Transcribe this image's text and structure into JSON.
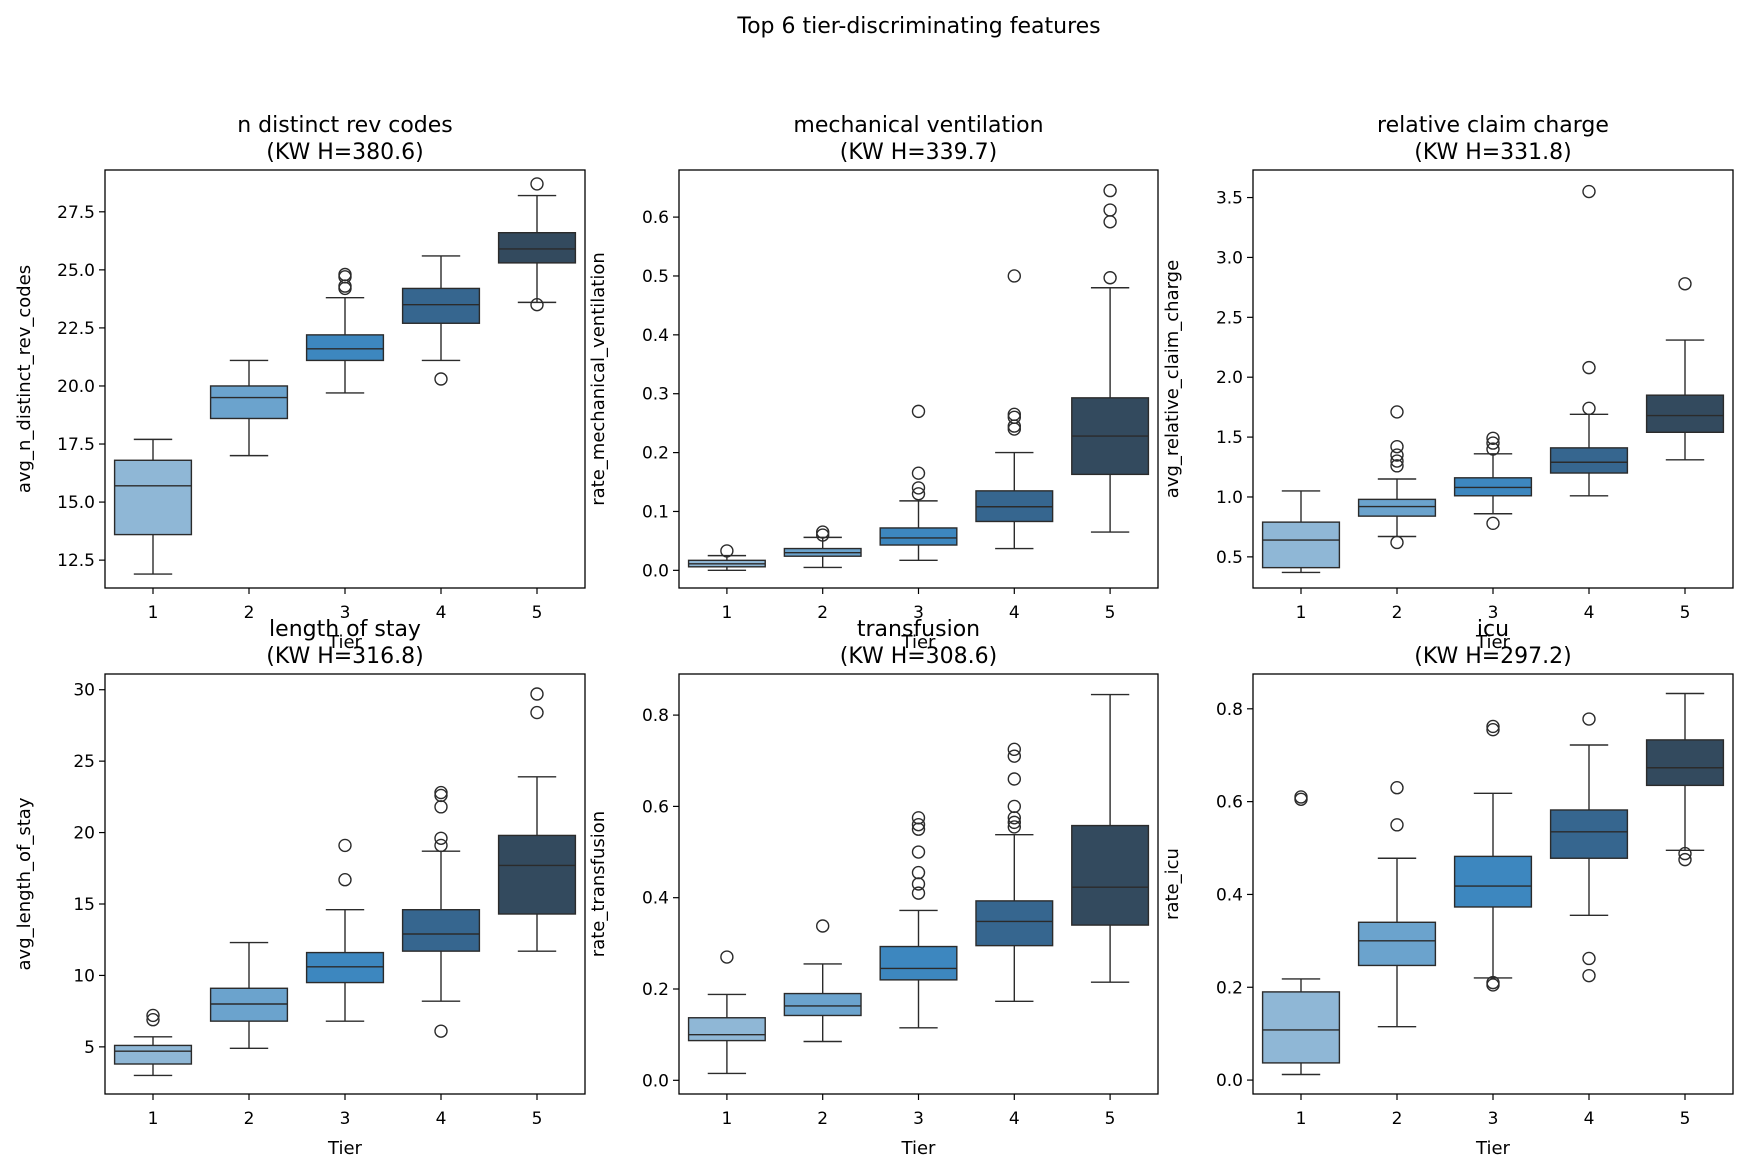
{
  "figure": {
    "title": "Top 6 tier-discriminating features"
  },
  "colors": {
    "tier": [
      "#8fb7d6",
      "#6ba3cd",
      "#3d87bf",
      "#36668f",
      "#334a5e"
    ],
    "edge": "#2b2b2b"
  },
  "chart_data": [
    {
      "type": "box",
      "title_line1": "n distinct rev codes",
      "title_line2": "(KW H=380.6)",
      "xlabel": "Tier",
      "ylabel": "avg_n_distinct_rev_codes",
      "categories": [
        "1",
        "2",
        "3",
        "4",
        "5"
      ],
      "ylim": [
        11.3,
        29.3
      ],
      "yticks": [
        12.5,
        15.0,
        17.5,
        20.0,
        22.5,
        25.0,
        27.5
      ],
      "ytick_labels": [
        "12.5",
        "15.0",
        "17.5",
        "20.0",
        "22.5",
        "25.0",
        "27.5"
      ],
      "boxes": [
        {
          "whislo": 11.9,
          "q1": 13.6,
          "med": 15.7,
          "q3": 16.8,
          "whishi": 17.7,
          "fliers": []
        },
        {
          "whislo": 17.0,
          "q1": 18.6,
          "med": 19.5,
          "q3": 20.0,
          "whishi": 21.1,
          "fliers": []
        },
        {
          "whislo": 19.7,
          "q1": 21.1,
          "med": 21.6,
          "q3": 22.2,
          "whishi": 23.8,
          "fliers": [
            24.2,
            24.3,
            24.7,
            24.8
          ]
        },
        {
          "whislo": 21.1,
          "q1": 22.7,
          "med": 23.5,
          "q3": 24.2,
          "whishi": 25.6,
          "fliers": [
            20.3
          ]
        },
        {
          "whislo": 23.6,
          "q1": 25.3,
          "med": 25.9,
          "q3": 26.6,
          "whishi": 28.2,
          "fliers": [
            28.7,
            23.5
          ]
        }
      ]
    },
    {
      "type": "box",
      "title_line1": "mechanical ventilation",
      "title_line2": "(KW H=339.7)",
      "xlabel": "Tier",
      "ylabel": "rate_mechanical_ventilation",
      "categories": [
        "1",
        "2",
        "3",
        "4",
        "5"
      ],
      "ylim": [
        -0.03,
        0.68
      ],
      "yticks": [
        0.0,
        0.1,
        0.2,
        0.3,
        0.4,
        0.5,
        0.6
      ],
      "ytick_labels": [
        "0.0",
        "0.1",
        "0.2",
        "0.3",
        "0.4",
        "0.5",
        "0.6"
      ],
      "boxes": [
        {
          "whislo": 0.0,
          "q1": 0.006,
          "med": 0.011,
          "q3": 0.017,
          "whishi": 0.025,
          "fliers": [
            0.033
          ]
        },
        {
          "whislo": 0.005,
          "q1": 0.024,
          "med": 0.03,
          "q3": 0.037,
          "whishi": 0.056,
          "fliers": [
            0.06,
            0.065
          ]
        },
        {
          "whislo": 0.017,
          "q1": 0.043,
          "med": 0.055,
          "q3": 0.072,
          "whishi": 0.118,
          "fliers": [
            0.13,
            0.14,
            0.165,
            0.27
          ]
        },
        {
          "whislo": 0.037,
          "q1": 0.083,
          "med": 0.108,
          "q3": 0.135,
          "whishi": 0.2,
          "fliers": [
            0.24,
            0.245,
            0.26,
            0.265,
            0.5
          ]
        },
        {
          "whislo": 0.065,
          "q1": 0.163,
          "med": 0.228,
          "q3": 0.293,
          "whishi": 0.48,
          "fliers": [
            0.497,
            0.592,
            0.612,
            0.645
          ]
        }
      ]
    },
    {
      "type": "box",
      "title_line1": "relative claim charge",
      "title_line2": "(KW H=331.8)",
      "xlabel": "Tier",
      "ylabel": "avg_relative_claim_charge",
      "categories": [
        "1",
        "2",
        "3",
        "4",
        "5"
      ],
      "ylim": [
        0.24,
        3.73
      ],
      "yticks": [
        0.5,
        1.0,
        1.5,
        2.0,
        2.5,
        3.0,
        3.5
      ],
      "ytick_labels": [
        "0.5",
        "1.0",
        "1.5",
        "2.0",
        "2.5",
        "3.0",
        "3.5"
      ],
      "boxes": [
        {
          "whislo": 0.37,
          "q1": 0.41,
          "med": 0.64,
          "q3": 0.79,
          "whishi": 1.05,
          "fliers": []
        },
        {
          "whislo": 0.67,
          "q1": 0.84,
          "med": 0.92,
          "q3": 0.98,
          "whishi": 1.15,
          "fliers": [
            0.62,
            1.26,
            1.3,
            1.35,
            1.42,
            1.71
          ]
        },
        {
          "whislo": 0.86,
          "q1": 1.01,
          "med": 1.08,
          "q3": 1.16,
          "whishi": 1.36,
          "fliers": [
            0.78,
            1.4,
            1.45,
            1.49
          ]
        },
        {
          "whislo": 1.01,
          "q1": 1.2,
          "med": 1.29,
          "q3": 1.41,
          "whishi": 1.69,
          "fliers": [
            1.74,
            2.08,
            3.55
          ]
        },
        {
          "whislo": 1.31,
          "q1": 1.54,
          "med": 1.68,
          "q3": 1.85,
          "whishi": 2.31,
          "fliers": [
            2.78
          ]
        }
      ]
    },
    {
      "type": "box",
      "title_line1": "length of stay",
      "title_line2": "(KW H=316.8)",
      "xlabel": "Tier",
      "ylabel": "avg_length_of_stay",
      "categories": [
        "1",
        "2",
        "3",
        "4",
        "5"
      ],
      "ylim": [
        1.7,
        31.1
      ],
      "yticks": [
        5,
        10,
        15,
        20,
        25,
        30
      ],
      "ytick_labels": [
        "5",
        "10",
        "15",
        "20",
        "25",
        "30"
      ],
      "boxes": [
        {
          "whislo": 3.0,
          "q1": 3.8,
          "med": 4.7,
          "q3": 5.1,
          "whishi": 5.7,
          "fliers": [
            6.9,
            7.2
          ]
        },
        {
          "whislo": 4.9,
          "q1": 6.8,
          "med": 8.0,
          "q3": 9.1,
          "whishi": 12.3,
          "fliers": []
        },
        {
          "whislo": 6.8,
          "q1": 9.5,
          "med": 10.6,
          "q3": 11.6,
          "whishi": 14.6,
          "fliers": [
            16.7,
            19.1
          ]
        },
        {
          "whislo": 8.2,
          "q1": 11.7,
          "med": 12.9,
          "q3": 14.6,
          "whishi": 18.7,
          "fliers": [
            6.1,
            19.1,
            19.6,
            21.8,
            22.6,
            22.8
          ]
        },
        {
          "whislo": 11.7,
          "q1": 14.3,
          "med": 17.7,
          "q3": 19.8,
          "whishi": 23.9,
          "fliers": [
            28.4,
            29.7
          ]
        }
      ]
    },
    {
      "type": "box",
      "title_line1": "transfusion",
      "title_line2": "(KW H=308.6)",
      "xlabel": "Tier",
      "ylabel": "rate_transfusion",
      "categories": [
        "1",
        "2",
        "3",
        "4",
        "5"
      ],
      "ylim": [
        -0.03,
        0.89
      ],
      "yticks": [
        0.0,
        0.2,
        0.4,
        0.6,
        0.8
      ],
      "ytick_labels": [
        "0.0",
        "0.2",
        "0.4",
        "0.6",
        "0.8"
      ],
      "boxes": [
        {
          "whislo": 0.015,
          "q1": 0.087,
          "med": 0.1,
          "q3": 0.137,
          "whishi": 0.188,
          "fliers": [
            0.27
          ]
        },
        {
          "whislo": 0.085,
          "q1": 0.142,
          "med": 0.163,
          "q3": 0.19,
          "whishi": 0.255,
          "fliers": [
            0.338
          ]
        },
        {
          "whislo": 0.115,
          "q1": 0.22,
          "med": 0.245,
          "q3": 0.293,
          "whishi": 0.372,
          "fliers": [
            0.41,
            0.43,
            0.455,
            0.5,
            0.55,
            0.56,
            0.575
          ]
        },
        {
          "whislo": 0.173,
          "q1": 0.295,
          "med": 0.348,
          "q3": 0.393,
          "whishi": 0.538,
          "fliers": [
            0.555,
            0.565,
            0.575,
            0.6,
            0.66,
            0.71,
            0.725
          ]
        },
        {
          "whislo": 0.215,
          "q1": 0.34,
          "med": 0.423,
          "q3": 0.558,
          "whishi": 0.845,
          "fliers": []
        }
      ]
    },
    {
      "type": "box",
      "title_line1": "icu",
      "title_line2": "(KW H=297.2)",
      "xlabel": "Tier",
      "ylabel": "rate_icu",
      "categories": [
        "1",
        "2",
        "3",
        "4",
        "5"
      ],
      "ylim": [
        -0.03,
        0.875
      ],
      "yticks": [
        0.0,
        0.2,
        0.4,
        0.6,
        0.8
      ],
      "ytick_labels": [
        "0.0",
        "0.2",
        "0.4",
        "0.6",
        "0.8"
      ],
      "boxes": [
        {
          "whislo": 0.012,
          "q1": 0.037,
          "med": 0.108,
          "q3": 0.19,
          "whishi": 0.218,
          "fliers": [
            0.605,
            0.61
          ]
        },
        {
          "whislo": 0.115,
          "q1": 0.247,
          "med": 0.3,
          "q3": 0.34,
          "whishi": 0.478,
          "fliers": [
            0.55,
            0.63
          ]
        },
        {
          "whislo": 0.22,
          "q1": 0.373,
          "med": 0.418,
          "q3": 0.482,
          "whishi": 0.618,
          "fliers": [
            0.205,
            0.21,
            0.755,
            0.762
          ]
        },
        {
          "whislo": 0.355,
          "q1": 0.478,
          "med": 0.535,
          "q3": 0.582,
          "whishi": 0.722,
          "fliers": [
            0.225,
            0.262,
            0.778
          ]
        },
        {
          "whislo": 0.495,
          "q1": 0.635,
          "med": 0.673,
          "q3": 0.733,
          "whishi": 0.833,
          "fliers": [
            0.475,
            0.488
          ]
        }
      ]
    }
  ]
}
